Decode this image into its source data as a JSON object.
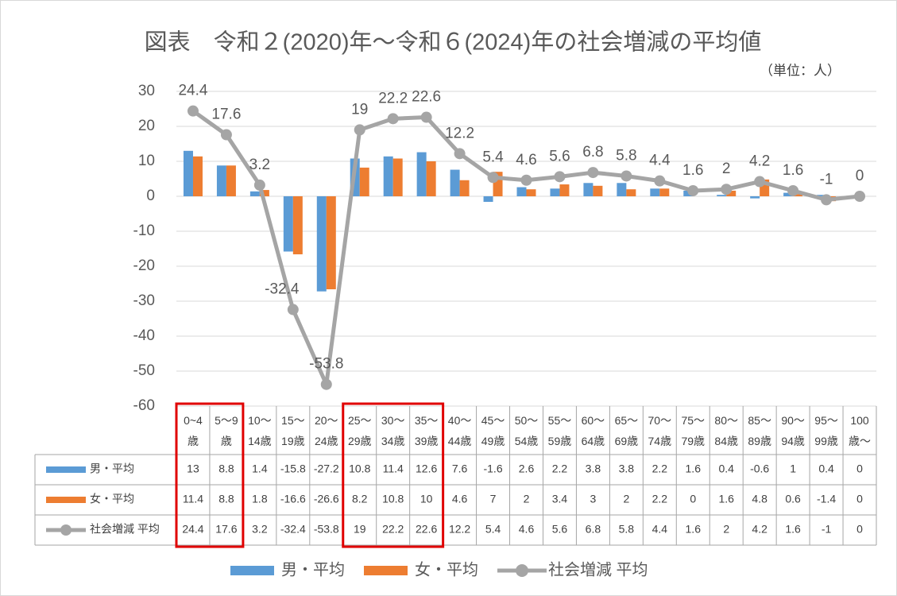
{
  "chart_data": {
    "type": "bar",
    "title": "図表　令和２(2020)年〜令和６(2024)年の社会増減の平均値",
    "subtitle": "（単位：人）",
    "categories": [
      "0~4\n歳",
      "5〜9\n歳",
      "10〜\n14歳",
      "15〜\n19歳",
      "20〜\n24歳",
      "25〜\n29歳",
      "30〜\n34歳",
      "35〜\n39歳",
      "40〜\n44歳",
      "45〜\n49歳",
      "50〜\n54歳",
      "55〜\n59歳",
      "60〜\n64歳",
      "65〜\n69歳",
      "70〜\n74歳",
      "75〜\n79歳",
      "80〜\n84歳",
      "85〜\n89歳",
      "90〜\n94歳",
      "95〜\n99歳",
      "100\n歳〜"
    ],
    "series": [
      {
        "name": "男・平均",
        "type": "bar",
        "color": "#5b9bd5",
        "values": [
          13,
          8.8,
          1.4,
          -15.8,
          -27.2,
          10.8,
          11.4,
          12.6,
          7.6,
          -1.6,
          2.6,
          2.2,
          3.8,
          3.8,
          2.2,
          1.6,
          0.4,
          -0.6,
          1,
          0.4,
          0
        ]
      },
      {
        "name": "女・平均",
        "type": "bar",
        "color": "#ed7d31",
        "values": [
          11.4,
          8.8,
          1.8,
          -16.6,
          -26.6,
          8.2,
          10.8,
          10,
          4.6,
          7,
          2,
          3.4,
          3,
          2,
          2.2,
          0,
          1.6,
          4.8,
          0.6,
          -1.4,
          0
        ]
      },
      {
        "name": "社会増減 平均",
        "type": "line",
        "color": "#a5a5a5",
        "values": [
          24.4,
          17.6,
          3.2,
          -32.4,
          -53.8,
          19,
          22.2,
          22.6,
          12.2,
          5.4,
          4.6,
          5.6,
          6.8,
          5.8,
          4.4,
          1.6,
          2,
          4.2,
          1.6,
          -1,
          0
        ]
      }
    ],
    "ylim": [
      -60,
      30
    ],
    "yticks": [
      -60,
      -50,
      -40,
      -30,
      -20,
      -10,
      0,
      10,
      20,
      30
    ],
    "grid": true,
    "data_table": true,
    "legend": "bottom"
  }
}
